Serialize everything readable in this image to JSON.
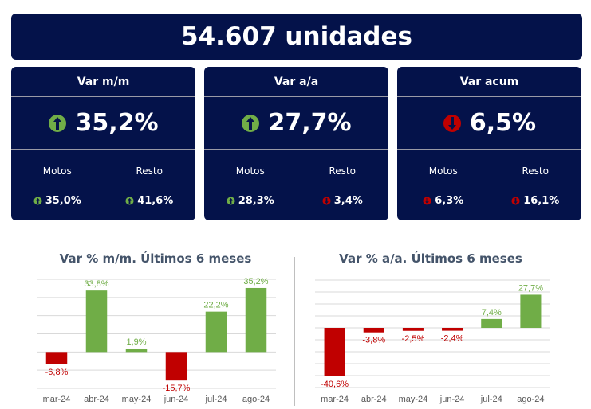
{
  "total": "54.607 unidades",
  "cards": [
    {
      "title": "Var m/m",
      "value": "35,2%",
      "dir": "up",
      "sub": [
        {
          "label": "Motos",
          "value": "35,0%",
          "dir": "up"
        },
        {
          "label": "Resto",
          "value": "41,6%",
          "dir": "up"
        }
      ]
    },
    {
      "title": "Var a/a",
      "value": "27,7%",
      "dir": "up",
      "sub": [
        {
          "label": "Motos",
          "value": "28,3%",
          "dir": "up"
        },
        {
          "label": "Resto",
          "value": "3,4%",
          "dir": "down"
        }
      ]
    },
    {
      "title": "Var acum",
      "value": "6,5%",
      "dir": "down",
      "sub": [
        {
          "label": "Motos",
          "value": "6,3%",
          "dir": "down"
        },
        {
          "label": "Resto",
          "value": "16,1%",
          "dir": "down"
        }
      ]
    }
  ],
  "colors": {
    "up": "#70ad47",
    "down": "#c00000",
    "navy": "#04124a"
  },
  "chart_data": [
    {
      "type": "bar",
      "title": "Var % m/m. Últimos 6 meses",
      "categories": [
        "mar-24",
        "abr-24",
        "may-24",
        "jun-24",
        "jul-24",
        "ago-24"
      ],
      "values": [
        -6.8,
        33.8,
        1.9,
        -15.7,
        22.2,
        35.2
      ],
      "labels": [
        "-6,8%",
        "33,8%",
        "1,9%",
        "-15,7%",
        "22,2%",
        "35,2%"
      ],
      "ylim": [
        -20,
        40
      ],
      "grid": true
    },
    {
      "type": "bar",
      "title": "Var % a/a. Últimos 6 meses",
      "categories": [
        "mar-24",
        "abr-24",
        "may-24",
        "jun-24",
        "jul-24",
        "ago-24"
      ],
      "values": [
        -40.6,
        -3.8,
        -2.5,
        -2.4,
        7.4,
        27.7
      ],
      "labels": [
        "-40,6%",
        "-3,8%",
        "-2,5%",
        "-2,4%",
        "7,4%",
        "27,7%"
      ],
      "ylim": [
        -50,
        40
      ],
      "grid": true
    }
  ]
}
